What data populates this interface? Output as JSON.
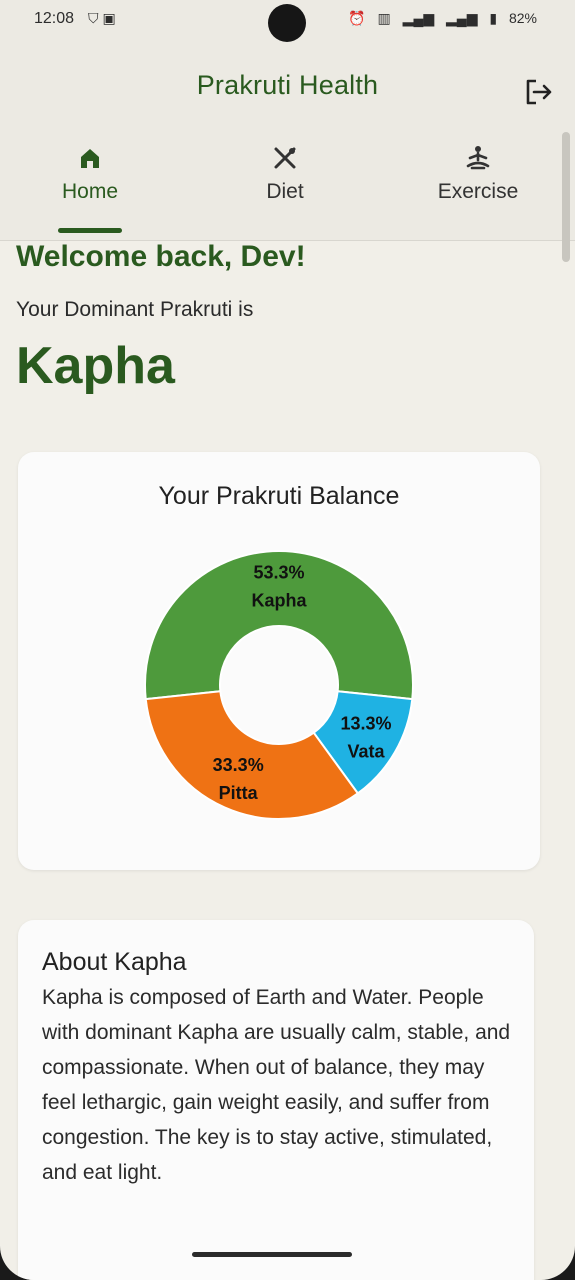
{
  "status_bar": {
    "time": "12:08",
    "left_icons": [
      "shield-icon",
      "facebook-icon"
    ],
    "right_icons": [
      "alarm-icon",
      "volte-icon",
      "signal-icon",
      "signal-icon",
      "battery-icon"
    ],
    "battery": "82%"
  },
  "app_bar": {
    "title": "Prakruti Health",
    "logout_icon": "logout-icon"
  },
  "tabs": [
    {
      "label": "Home",
      "icon": "home-icon",
      "active": true
    },
    {
      "label": "Diet",
      "icon": "fork-knife-icon",
      "active": false
    },
    {
      "label": "Exercise",
      "icon": "meditation-icon",
      "active": false
    }
  ],
  "main": {
    "welcome": "Welcome back, Dev!",
    "dominant_label": "Your Dominant Prakruti is",
    "dominant_value": "Kapha"
  },
  "chart_card": {
    "title": "Your Prakruti Balance"
  },
  "chart_data": {
    "type": "pie",
    "title": "Your Prakruti Balance",
    "donut": true,
    "slices": [
      {
        "label": "Kapha",
        "value": 53.3,
        "display": "53.3%",
        "color": "#4e9a3c"
      },
      {
        "label": "Vata",
        "value": 13.3,
        "display": "13.3%",
        "color": "#1fb2e3"
      },
      {
        "label": "Pitta",
        "value": 33.3,
        "display": "33.3%",
        "color": "#ef7214"
      }
    ]
  },
  "about": {
    "title": "About Kapha",
    "body": "Kapha is composed of Earth and Water. People with dominant Kapha are usually calm, stable, and compassionate. When out of balance, they may feel lethargic, gain weight easily, and suffer from congestion. The key is to stay active, stimulated, and eat light."
  },
  "colors": {
    "primary": "#2a5a1f",
    "background": "#f1efe8",
    "card": "#fbfbfb"
  }
}
